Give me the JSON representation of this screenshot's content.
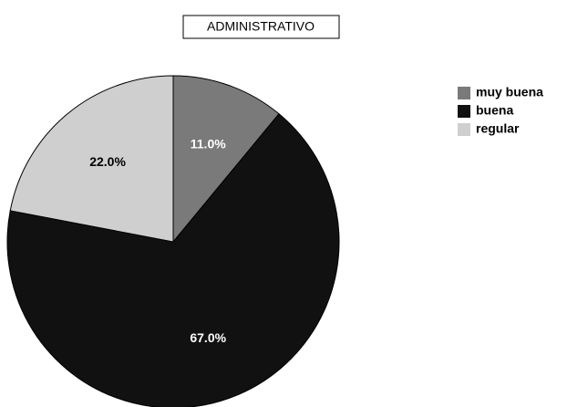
{
  "chart_data": {
    "type": "pie",
    "title": "ADMINISTRATIVO",
    "categories": [
      "muy buena",
      "buena",
      "regular"
    ],
    "values": [
      11,
      67,
      22
    ],
    "value_labels": [
      "11.0%",
      "67.0%",
      "22.0%"
    ],
    "colors": [
      "#7a7a7a",
      "#111111",
      "#cfcfcf"
    ],
    "legend": "top-right"
  }
}
